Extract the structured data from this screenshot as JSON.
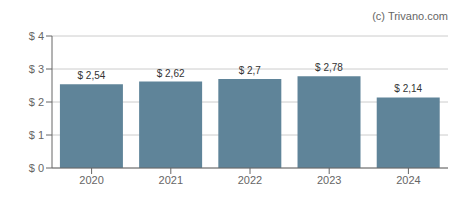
{
  "chart_data": {
    "type": "bar",
    "categories": [
      "2020",
      "2021",
      "2022",
      "2023",
      "2024"
    ],
    "values": [
      2.54,
      2.62,
      2.7,
      2.78,
      2.14
    ],
    "value_labels": [
      "$ 2,54",
      "$ 2,62",
      "$ 2,7",
      "$ 2,78",
      "$ 2,14"
    ],
    "color": "#5f8499",
    "ylim": [
      0,
      4
    ],
    "yticks": [
      {
        "value": 0,
        "label": "$ 0"
      },
      {
        "value": 1,
        "label": "$ 1"
      },
      {
        "value": 2,
        "label": "$ 2"
      },
      {
        "value": 3,
        "label": "$ 3"
      },
      {
        "value": 4,
        "label": "$ 4"
      }
    ],
    "grid": true,
    "data_labels": true,
    "annotations": [
      "(c) Trivano.com"
    ]
  }
}
